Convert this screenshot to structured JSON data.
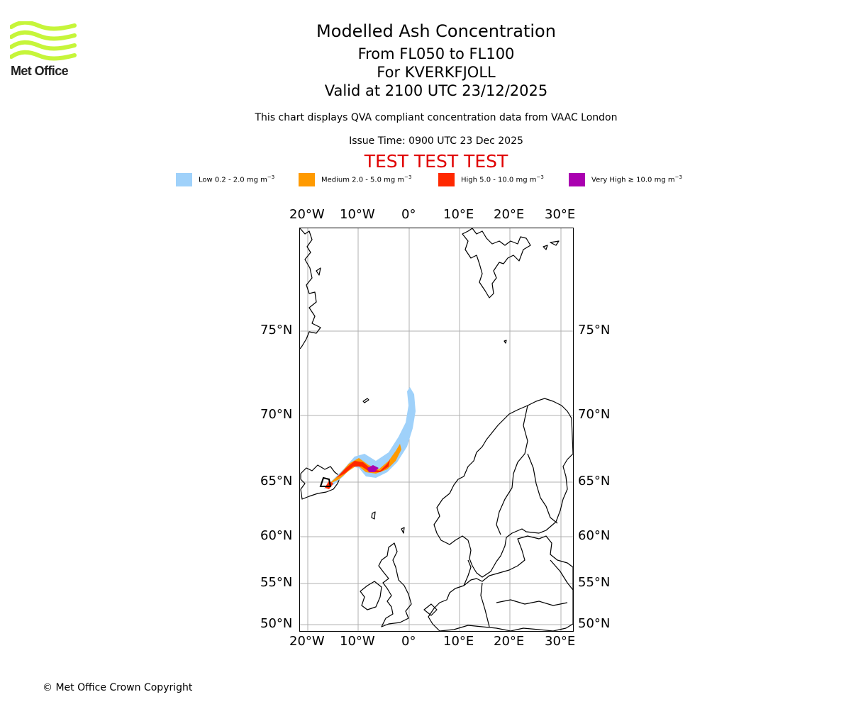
{
  "logo": {
    "text": "Met Office"
  },
  "title": {
    "line1": "Modelled Ash Concentration",
    "line2": "From FL050 to FL100",
    "line3": "For KVERKFJOLL",
    "line4": "Valid at 2100 UTC 23/12/2025"
  },
  "subtitle": "This chart displays QVA compliant concentration data from VAAC London",
  "issue_time": "Issue Time: 0900 UTC 23 Dec 2025",
  "test_banner": "TEST TEST TEST",
  "legend": [
    {
      "label": "Low 0.2 - 2.0 mg m",
      "color": "#9fd1fa"
    },
    {
      "label": "Medium 2.0 - 5.0 mg m",
      "color": "#ff9a00"
    },
    {
      "label": "High 5.0 - 10.0 mg m",
      "color": "#ff2800"
    },
    {
      "label": "Very High ≥ 10.0 mg m",
      "color": "#aa00b0"
    }
  ],
  "legend_unit_exponent": "−3",
  "map": {
    "lon_labels": [
      "20°W",
      "10°W",
      "0°",
      "10°E",
      "20°E",
      "30°E"
    ],
    "lat_labels": [
      "75°N",
      "70°N",
      "65°N",
      "60°N",
      "55°N",
      "50°N"
    ],
    "volcano": "KVERKFJOLL",
    "grid": true,
    "colors": {
      "gridline": "#b0b0b0",
      "coastline": "#000000"
    }
  },
  "copyright": "© Met Office Crown Copyright"
}
